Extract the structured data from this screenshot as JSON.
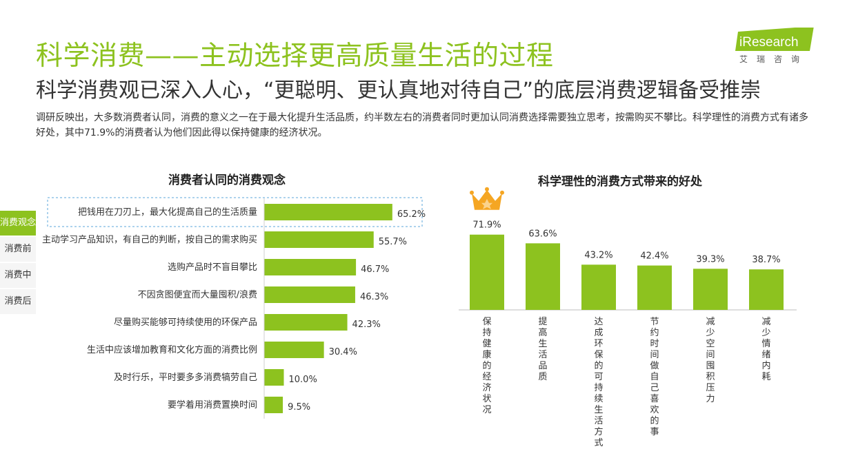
{
  "header": {
    "title": "科学消费——主动选择更高质量生活的过程",
    "subtitle": "科学消费观已深入人心，“更聪明、更认真地对待自己”的底层消费逻辑备受推崇",
    "intro": "调研反映出，大多数消费者认同，消费的意义之一在于最大化提升生活品质，约半数左右的消费者同时更加认同消费选择需要独立思考，按需购买不攀比。科学理性的消费方式有诸多好处，其中71.9%的消费者认为他们因此得以保持健康的经济状况。"
  },
  "logo": {
    "brand": "iResearch",
    "cn": "艾瑞咨询"
  },
  "side_nav": {
    "items": [
      {
        "label": "消费观念",
        "active": true
      },
      {
        "label": "消费前",
        "active": false
      },
      {
        "label": "消费中",
        "active": false
      },
      {
        "label": "消费后",
        "active": false
      }
    ]
  },
  "colors": {
    "accent": "#8DC21F",
    "highlight_border": "#5AA6DB",
    "crown": "#F5A623"
  },
  "chart_data": [
    {
      "type": "bar",
      "orientation": "horizontal",
      "title": "消费者认同的消费观念",
      "categories": [
        "把钱用在刀刃上，最大化提高自己的生活质量",
        "主动学习产品知识，有自己的判断，按自己的需求购买",
        "选购产品时不盲目攀比",
        "不因贪图便宜而大量囤积/浪费",
        "尽量购买能够可持续使用的环保产品",
        "生活中应该增加教育和文化方面的消费比例",
        "及时行乐，平时要多多消费犒劳自己",
        "要学着用消费置换时间"
      ],
      "values": [
        65.2,
        55.7,
        46.7,
        46.3,
        42.3,
        30.4,
        10.0,
        9.5
      ],
      "value_labels": [
        "65.2%",
        "55.7%",
        "46.7%",
        "46.3%",
        "42.3%",
        "30.4%",
        "10.0%",
        "9.5%"
      ],
      "highlight_index": 0,
      "xlim": [
        0,
        100
      ]
    },
    {
      "type": "bar",
      "orientation": "vertical",
      "title": "科学理性的消费方式带来的好处",
      "categories": [
        "保持健康的经济状况",
        "提高生活品质",
        "达成环保的可持续生活方式",
        "节约时间做自己喜欢的事",
        "减少空间囤积压力",
        "减少情绪内耗"
      ],
      "values": [
        71.9,
        63.6,
        43.2,
        42.4,
        39.3,
        38.7
      ],
      "value_labels": [
        "71.9%",
        "63.6%",
        "43.2%",
        "42.4%",
        "39.3%",
        "38.7%"
      ],
      "crown_index": 0,
      "ylim": [
        0,
        100
      ]
    }
  ]
}
